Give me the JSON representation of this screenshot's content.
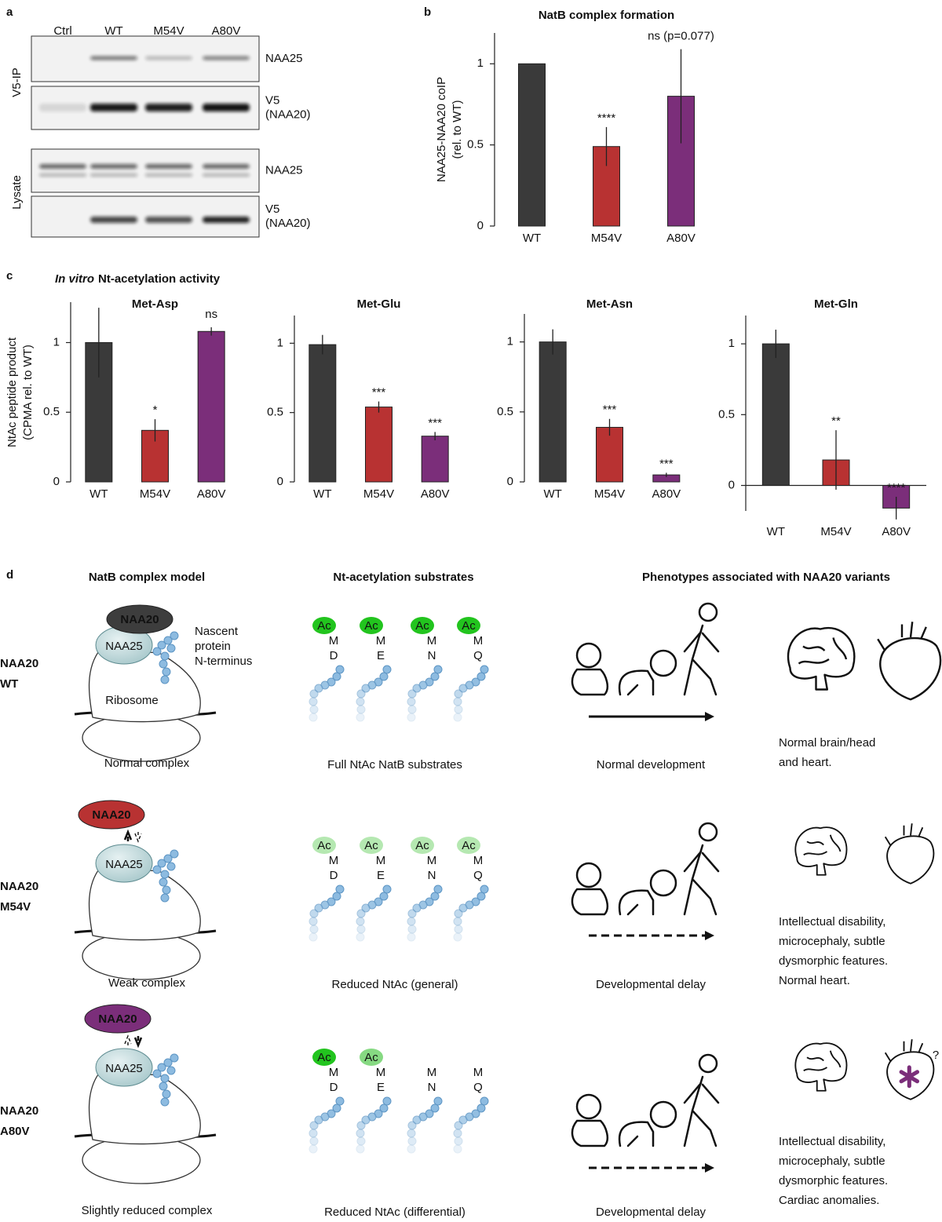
{
  "blot": {
    "label": "a",
    "lanes": [
      "Ctrl",
      "WT",
      "M54V",
      "A80V"
    ],
    "groups": [
      "V5-IP",
      "Lysate"
    ],
    "bands": [
      [
        "NAA25"
      ],
      [
        "V5",
        "(NAA20)"
      ],
      [
        "NAA25"
      ],
      [
        "V5",
        "(NAA20)"
      ]
    ]
  },
  "panel_c": {
    "label": "c",
    "title_italic": "In vitro",
    "title": "Nt-acetylation activity"
  },
  "chart_data": [
    {
      "type": "bar",
      "label": "b",
      "title": "NatB complex formation",
      "ylabel": [
        "NAA25-NAA20 coIP",
        "(rel. to WT)"
      ],
      "categories": [
        "WT",
        "M54V",
        "A80V"
      ],
      "values": [
        1.0,
        0.49,
        0.8
      ],
      "errors": [
        0,
        0.12,
        0.29
      ],
      "colors": [
        "#3a3a3a",
        "#b83232",
        "#7b2e7a"
      ],
      "ylim": [
        0,
        1.19
      ],
      "yticks": [
        0,
        0.5,
        1
      ],
      "annotations": [
        {
          "x": "M54V",
          "text": "****"
        },
        {
          "x": "A80V",
          "text": "ns (p=0.077)"
        }
      ]
    },
    {
      "type": "bar",
      "title": "Met-Asp",
      "ylabel": [
        "NtAc peptide product",
        "(CPMA rel. to WT)"
      ],
      "categories": [
        "WT",
        "M54V",
        "A80V"
      ],
      "values": [
        1.0,
        0.37,
        1.08
      ],
      "errors": [
        0.25,
        0.08,
        0.03
      ],
      "colors": [
        "#3a3a3a",
        "#b83232",
        "#7b2e7a"
      ],
      "ylim": [
        0,
        1.29
      ],
      "yticks": [
        0,
        0.5,
        1
      ],
      "annotations": [
        {
          "x": "M54V",
          "text": "*"
        },
        {
          "x": "A80V",
          "text": "ns"
        }
      ]
    },
    {
      "type": "bar",
      "title": "Met-Glu",
      "categories": [
        "WT",
        "M54V",
        "A80V"
      ],
      "values": [
        0.99,
        0.54,
        0.33
      ],
      "errors": [
        0.07,
        0.04,
        0.03
      ],
      "colors": [
        "#3a3a3a",
        "#b83232",
        "#7b2e7a"
      ],
      "ylim": [
        0,
        1.2
      ],
      "yticks": [
        0,
        0.5,
        1
      ],
      "annotations": [
        {
          "x": "M54V",
          "text": "***"
        },
        {
          "x": "A80V",
          "text": "***"
        }
      ]
    },
    {
      "type": "bar",
      "title": "Met-Asn",
      "categories": [
        "WT",
        "M54V",
        "A80V"
      ],
      "values": [
        1.0,
        0.39,
        0.05
      ],
      "errors": [
        0.09,
        0.06,
        0.015
      ],
      "colors": [
        "#3a3a3a",
        "#b83232",
        "#7b2e7a"
      ],
      "ylim": [
        0,
        1.2
      ],
      "yticks": [
        0,
        0.5,
        1
      ],
      "annotations": [
        {
          "x": "M54V",
          "text": "***"
        },
        {
          "x": "A80V",
          "text": "***"
        }
      ]
    },
    {
      "type": "bar",
      "title": "Met-Gln",
      "categories": [
        "WT",
        "M54V",
        "A80V"
      ],
      "values": [
        1.0,
        0.18,
        -0.16
      ],
      "errors": [
        0.1,
        0.21,
        0.08
      ],
      "colors": [
        "#3a3a3a",
        "#b83232",
        "#7b2e7a"
      ],
      "ylim": [
        -0.18,
        1.2
      ],
      "yticks": [
        0,
        0.5,
        1
      ],
      "annotations": [
        {
          "x": "M54V",
          "text": "**"
        },
        {
          "x": "A80V",
          "text": "****"
        }
      ]
    }
  ],
  "figure_d": {
    "label": "d",
    "headings": [
      "NatB complex model",
      "Nt-acetylation substrates",
      "Phenotypes associated with NAA20 variants"
    ],
    "complex_labels": {
      "naa20": "NAA20",
      "naa25": "NAA25",
      "nascent": [
        "Nascent",
        "protein",
        "N-terminus"
      ],
      "ribosome": "Ribosome"
    },
    "rows": [
      {
        "name": [
          "NAA20",
          "WT"
        ],
        "naa20_color": "#3d3d3d",
        "complex_caption": "Normal complex",
        "substrates": [
          {
            "ac": "Ac",
            "ac_color": "#22c41e",
            "ac_text_color": "#1a1a1a",
            "residues": [
              "M",
              "D"
            ]
          },
          {
            "ac": "Ac",
            "ac_color": "#22c41e",
            "ac_text_color": "#1a1a1a",
            "residues": [
              "M",
              "E"
            ]
          },
          {
            "ac": "Ac",
            "ac_color": "#22c41e",
            "ac_text_color": "#1a1a1a",
            "residues": [
              "M",
              "N"
            ]
          },
          {
            "ac": "Ac",
            "ac_color": "#22c41e",
            "ac_text_color": "#1a1a1a",
            "residues": [
              "M",
              "Q"
            ]
          }
        ],
        "substrate_caption": "Full NtAc NatB substrates",
        "development_caption": "Normal development",
        "development_arrow": "solid",
        "phenotype": [
          "Normal brain/head",
          "and heart."
        ]
      },
      {
        "name": [
          "NAA20",
          "M54V"
        ],
        "naa20_color": "#b83232",
        "complex_caption": "Weak complex",
        "substrates": [
          {
            "ac": "Ac",
            "ac_color": "#b5e8b1",
            "ac_text_color": "#8a8a8a",
            "residues": [
              "M",
              "D"
            ]
          },
          {
            "ac": "Ac",
            "ac_color": "#b5e8b1",
            "ac_text_color": "#8a8a8a",
            "residues": [
              "M",
              "E"
            ]
          },
          {
            "ac": "Ac",
            "ac_color": "#b5e8b1",
            "ac_text_color": "#8a8a8a",
            "residues": [
              "M",
              "N"
            ]
          },
          {
            "ac": "Ac",
            "ac_color": "#b5e8b1",
            "ac_text_color": "#8a8a8a",
            "residues": [
              "M",
              "Q"
            ]
          }
        ],
        "substrate_caption": "Reduced NtAc (general)",
        "development_caption": "Developmental delay",
        "development_arrow": "dashed",
        "phenotype": [
          "Intellectual disability,",
          "microcephaly, subtle",
          "dysmorphic features.",
          "Normal heart."
        ]
      },
      {
        "name": [
          "NAA20",
          "A80V"
        ],
        "naa20_color": "#7b2e7a",
        "complex_caption": "Slightly reduced complex",
        "substrates": [
          {
            "ac": "Ac",
            "ac_color": "#22c41e",
            "ac_text_color": "#1a1a1a",
            "residues": [
              "M",
              "D"
            ]
          },
          {
            "ac": "Ac",
            "ac_color": "#86d982",
            "ac_text_color": "#6a6a6a",
            "residues": [
              "M",
              "E"
            ]
          },
          {
            "residues": [
              "M",
              "N"
            ]
          },
          {
            "residues": [
              "M",
              "Q"
            ]
          }
        ],
        "substrate_caption": "Reduced NtAc (differential)",
        "development_caption": "Developmental delay",
        "development_arrow": "dashed",
        "phenotype": [
          "Intellectual disability,",
          "microcephaly, subtle",
          "dysmorphic features.",
          "Cardiac anomalies."
        ],
        "note": "?"
      }
    ]
  }
}
